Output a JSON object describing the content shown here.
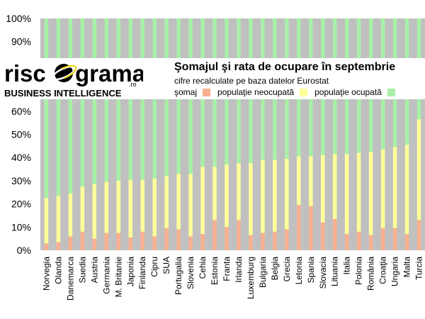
{
  "header": {
    "logo_text": "risc grama",
    "logo_ro": ".ro",
    "logo_sub": "BUSINESS INTELLIGENCE",
    "title": "Şomajul şi rata de ocupare în septembrie",
    "subtitle": "cifre recalculate pe baza datelor Eurostat"
  },
  "colors": {
    "somaj": "#f8b090",
    "neocupata": "#ffff99",
    "ocupata": "#a8f0a8",
    "gap": "#c0c0c0"
  },
  "chart_data": {
    "type": "bar",
    "stacked": true,
    "title": "Şomajul şi rata de ocupare în septembrie",
    "subtitle": "cifre recalculate pe baza datelor Eurostat",
    "ylim": [
      0,
      100
    ],
    "y_ticks": [
      "0%",
      "10%",
      "20%",
      "30%",
      "40%",
      "50%",
      "60%",
      "90%",
      "100%"
    ],
    "y_tick_values": [
      0,
      10,
      20,
      30,
      40,
      50,
      60,
      90,
      100
    ],
    "grid": false,
    "legend_position": "top",
    "categories": [
      "Norvegia",
      "Olanda",
      "Danemarca",
      "Suedia",
      "Austria",
      "Germania",
      "M. Britanie",
      "Japonia",
      "Finlanda",
      "Cipru",
      "SUA",
      "Portugalia",
      "Slovenia",
      "Cehia",
      "Estonia",
      "Franta",
      "Irlanda",
      "Luxemburg",
      "Bulgaria",
      "Belgia",
      "Grecia",
      "Letonia",
      "Spania",
      "Slovacia",
      "Lituania",
      "Italia",
      "Polonia",
      "România",
      "Croaţia",
      "Ungaria",
      "Malta",
      "Turcia"
    ],
    "series": [
      {
        "name": "şomaj",
        "values": [
          3,
          3.5,
          6,
          8,
          5,
          7.5,
          7.5,
          5.5,
          8,
          6,
          9.5,
          9,
          6,
          7,
          13,
          10,
          13,
          6.5,
          7.5,
          8,
          9,
          19.5,
          19,
          12,
          13.5,
          7,
          8,
          6.5,
          9.5,
          9.5,
          7,
          13
        ]
      },
      {
        "name": "populaţie neocupată",
        "values": [
          19.5,
          20,
          18.5,
          19.5,
          23.5,
          22,
          22.5,
          25,
          22.5,
          25,
          22.5,
          24,
          27,
          29,
          23,
          27,
          24.5,
          31,
          31.5,
          31,
          30.5,
          21,
          21.5,
          29,
          28,
          34.5,
          34,
          36,
          34,
          35,
          38.5,
          43.5
        ]
      },
      {
        "name": "populaţie ocupată",
        "values": [
          77.5,
          76.5,
          75.5,
          72.5,
          71.5,
          70.5,
          70,
          69.5,
          69.5,
          69,
          68,
          67,
          67,
          64,
          64,
          63,
          62.5,
          62.5,
          61,
          61,
          60.5,
          59.5,
          59.5,
          59,
          58.5,
          58.5,
          58,
          57.5,
          56.5,
          55.5,
          54.5,
          43.5
        ]
      }
    ]
  }
}
